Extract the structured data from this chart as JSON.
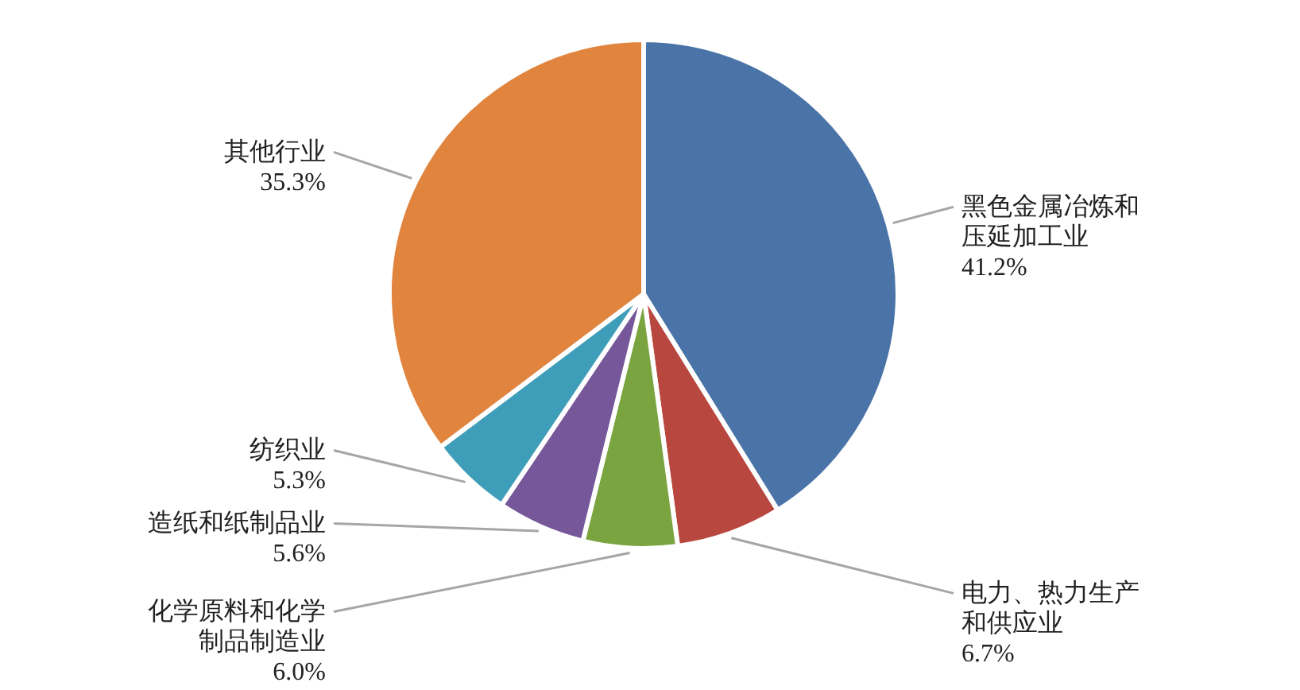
{
  "chart_data": {
    "type": "pie",
    "categories": [
      "黑色金属冶炼和压延加工业",
      "电力、热力生产和供应业",
      "化学原料和化学制品制造业",
      "造纸和纸制品业",
      "纺织业",
      "其他行业"
    ],
    "values": [
      41.2,
      6.7,
      6.0,
      5.6,
      5.3,
      35.3
    ],
    "value_labels": [
      "41.2%",
      "6.7%",
      "6.0%",
      "5.6%",
      "5.3%",
      "35.3%"
    ],
    "colors": [
      "#4a74a8",
      "#b8473f",
      "#7aa43f",
      "#76589a",
      "#3e9db8",
      "#e0843e"
    ]
  }
}
